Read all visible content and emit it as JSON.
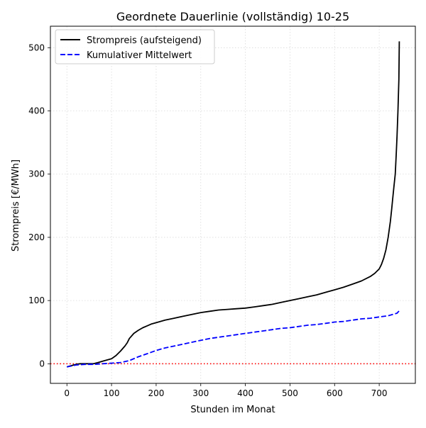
{
  "chart_data": {
    "type": "line",
    "title": "Geordnete Dauerlinie (vollständig) 10-25",
    "xlabel": "Stunden im Monat",
    "ylabel": "Strompreis [€/MWh]",
    "xlim": [
      -37,
      781
    ],
    "ylim": [
      -31,
      534
    ],
    "x_ticks": [
      0,
      100,
      200,
      300,
      400,
      500,
      600,
      700
    ],
    "y_ticks": [
      0,
      100,
      200,
      300,
      400,
      500
    ],
    "grid": true,
    "legend_position": "top-left",
    "reference_line": {
      "y": 0,
      "style": "dotted",
      "color": "#ff0000"
    },
    "series": [
      {
        "name": "Strompreis (aufsteigend)",
        "color": "#000000",
        "style": "solid",
        "x": [
          0,
          10,
          20,
          30,
          40,
          50,
          60,
          70,
          80,
          90,
          100,
          110,
          120,
          130,
          135,
          140,
          150,
          160,
          170,
          180,
          190,
          200,
          220,
          240,
          260,
          280,
          300,
          320,
          340,
          360,
          380,
          400,
          420,
          440,
          460,
          480,
          500,
          520,
          540,
          560,
          580,
          600,
          620,
          640,
          660,
          680,
          690,
          700,
          705,
          710,
          715,
          720,
          725,
          728,
          730,
          733,
          736,
          738,
          740,
          742,
          744,
          745
        ],
        "y": [
          -5,
          -3,
          -1,
          0,
          0,
          0,
          0,
          2,
          4,
          6,
          8,
          13,
          20,
          28,
          33,
          40,
          48,
          53,
          57,
          60,
          63,
          65,
          69,
          72,
          75,
          78,
          81,
          83,
          85,
          86,
          87,
          88,
          90,
          92,
          94,
          97,
          100,
          103,
          106,
          109,
          113,
          117,
          121,
          126,
          131,
          138,
          143,
          150,
          157,
          167,
          180,
          200,
          225,
          245,
          260,
          280,
          300,
          330,
          360,
          400,
          450,
          510
        ]
      },
      {
        "name": "Kumulativer Mittelwert",
        "color": "#0000ff",
        "style": "dashed",
        "x": [
          0,
          20,
          40,
          60,
          80,
          100,
          120,
          140,
          160,
          180,
          200,
          220,
          240,
          260,
          280,
          300,
          320,
          340,
          360,
          380,
          400,
          420,
          440,
          460,
          480,
          500,
          520,
          540,
          560,
          580,
          600,
          620,
          640,
          660,
          680,
          700,
          720,
          730,
          740,
          745
        ],
        "y": [
          -5,
          -2,
          -1,
          -1,
          0,
          1,
          2,
          5,
          11,
          16,
          21,
          25,
          28,
          31,
          34,
          37,
          40,
          42,
          44,
          46,
          48,
          50,
          52,
          54,
          56,
          57,
          59,
          61,
          62,
          64,
          66,
          67,
          69,
          71,
          72,
          74,
          76,
          78,
          80,
          84
        ]
      }
    ]
  }
}
